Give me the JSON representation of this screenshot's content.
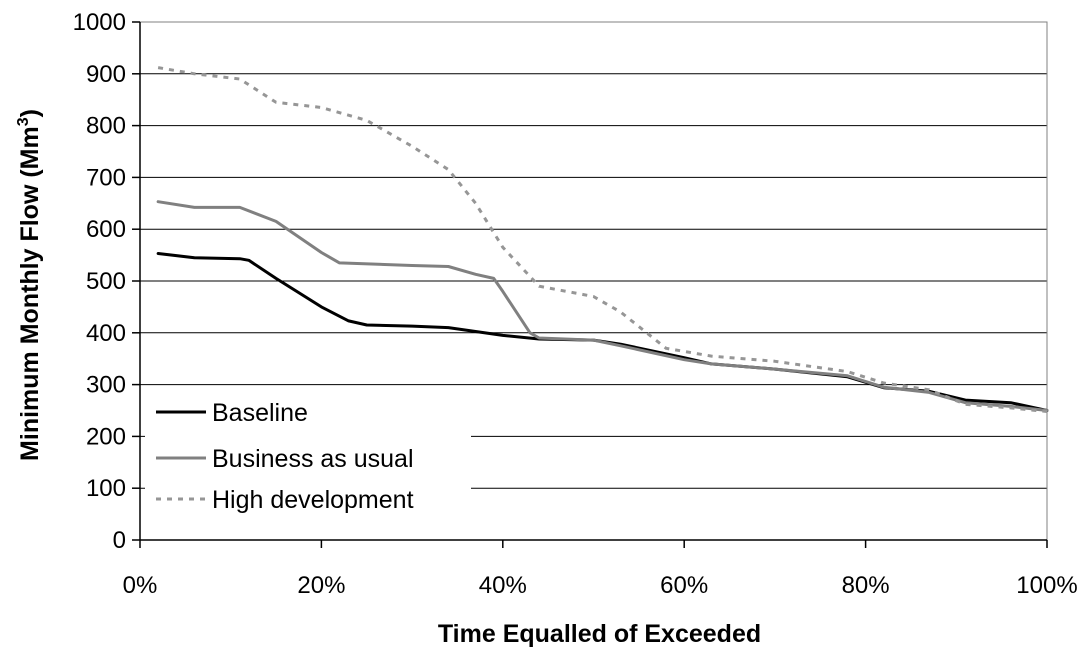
{
  "chart_data": {
    "type": "line",
    "xlabel": "Time Equalled of Exceeded",
    "ylabel_main": "Minimum Monthly Flow (Mm",
    "ylabel_sup": "3",
    "ylabel_tail": ")",
    "xlim": [
      0,
      100
    ],
    "ylim": [
      0,
      1000
    ],
    "x_ticks": [
      0,
      20,
      40,
      60,
      80,
      100
    ],
    "x_tick_labels": [
      "0%",
      "20%",
      "40%",
      "60%",
      "80%",
      "100%"
    ],
    "y_ticks": [
      0,
      100,
      200,
      300,
      400,
      500,
      600,
      700,
      800,
      900,
      1000
    ],
    "y_tick_labels": [
      "0",
      "100",
      "200",
      "300",
      "400",
      "500",
      "600",
      "700",
      "800",
      "900",
      "1000"
    ],
    "grid": "horizontal",
    "legend_position": "bottom-left",
    "series": [
      {
        "name": "Baseline",
        "color": "#000000",
        "dash": "solid",
        "x": [
          2,
          6,
          11,
          12,
          15,
          20,
          23,
          25,
          30,
          34,
          40,
          44,
          50,
          53,
          60,
          63,
          70,
          78,
          82,
          87,
          91,
          96,
          100
        ],
        "y": [
          553,
          545,
          543,
          540,
          505,
          450,
          423,
          415,
          413,
          410,
          395,
          388,
          386,
          378,
          352,
          340,
          330,
          315,
          294,
          287,
          270,
          265,
          250
        ]
      },
      {
        "name": "Business as usual",
        "color": "#808080",
        "dash": "solid",
        "x": [
          2,
          6,
          11,
          15,
          20,
          22,
          30,
          34,
          37,
          39,
          40,
          43,
          44,
          50,
          53,
          60,
          63,
          70,
          78,
          82,
          87,
          91,
          96,
          100
        ],
        "y": [
          653,
          642,
          642,
          615,
          555,
          535,
          530,
          528,
          513,
          505,
          480,
          400,
          390,
          386,
          375,
          348,
          340,
          330,
          317,
          295,
          285,
          265,
          258,
          250
        ]
      },
      {
        "name": "High development",
        "color": "#969696",
        "dash": "dashed",
        "x": [
          2,
          6,
          11,
          15,
          20,
          25,
          30,
          34,
          37,
          40,
          44,
          50,
          53,
          58,
          63,
          70,
          78,
          82,
          87,
          91,
          96,
          100
        ],
        "y": [
          912,
          900,
          890,
          845,
          835,
          810,
          760,
          715,
          650,
          565,
          490,
          470,
          440,
          370,
          355,
          345,
          325,
          303,
          290,
          262,
          255,
          248
        ]
      }
    ]
  }
}
